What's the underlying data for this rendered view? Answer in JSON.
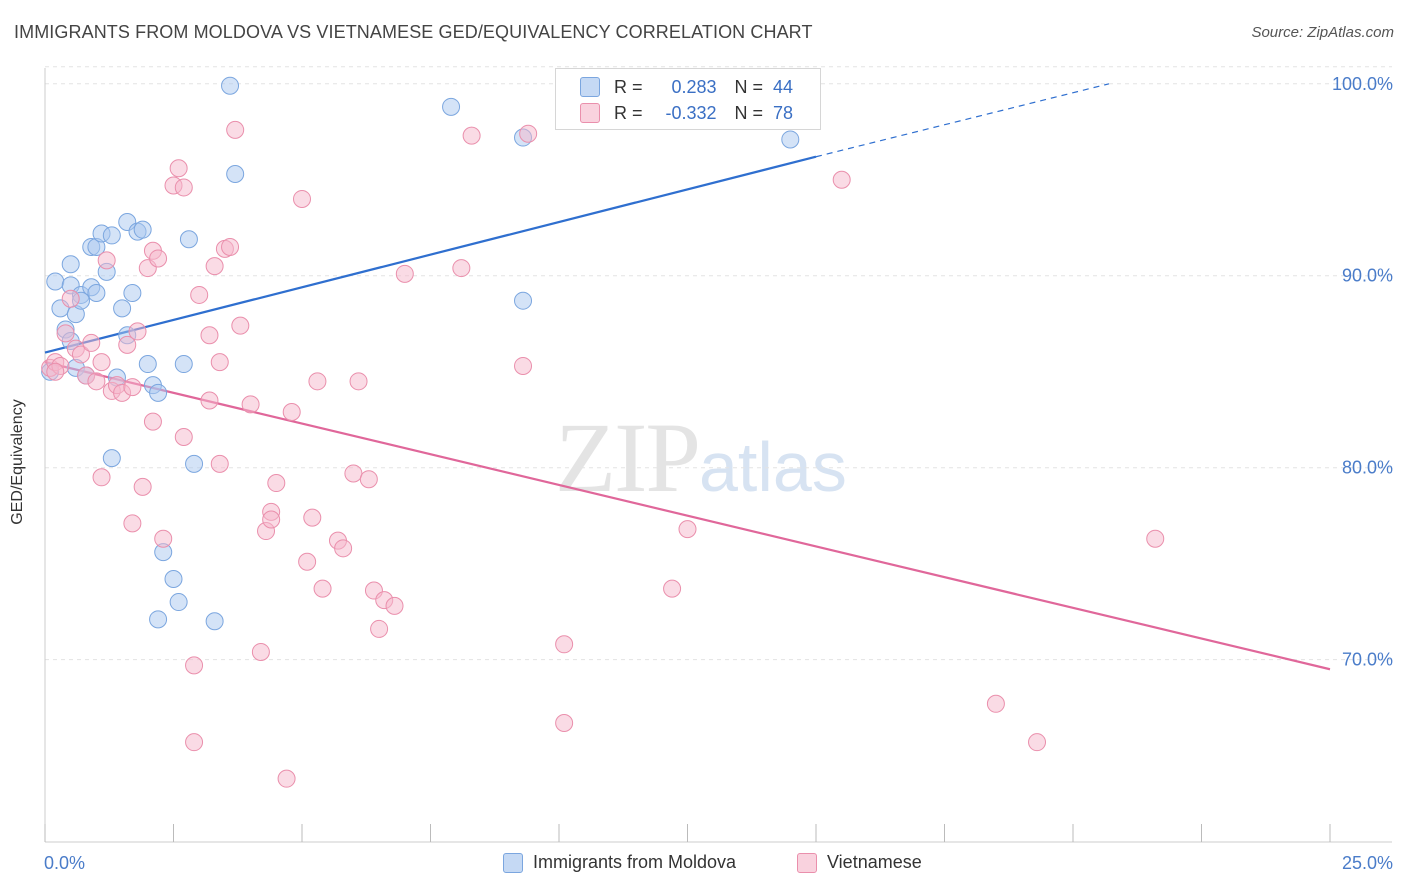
{
  "header": {
    "title": "IMMIGRANTS FROM MOLDOVA VS VIETNAMESE GED/EQUIVALENCY CORRELATION CHART",
    "source": "Source: ZipAtlas.com"
  },
  "watermark": {
    "zip": "ZIP",
    "atlas": "atlas"
  },
  "stats_box": {
    "rows": [
      {
        "r_label": "R =",
        "r_value": "0.283",
        "n_label": "N =",
        "n_value": "44",
        "color": "#a9c8f0"
      },
      {
        "r_label": "R =",
        "r_value": "-0.332",
        "n_label": "N =",
        "n_value": "78",
        "color": "#f5b8cb"
      }
    ]
  },
  "chart_data": {
    "type": "scatter",
    "title": "IMMIGRANTS FROM MOLDOVA VS VIETNAMESE GED/EQUIVALENCY CORRELATION CHART",
    "xlabel": "",
    "ylabel": "GED/Equivalency",
    "xlim": [
      0,
      25
    ],
    "ylim": [
      60.5,
      101.5
    ],
    "x_tick_labels": [
      "0.0%",
      "25.0%"
    ],
    "y_ticks": [
      70,
      80,
      90,
      100
    ],
    "y_tick_labels": [
      "70.0%",
      "80.0%",
      "90.0%",
      "100.0%"
    ],
    "grid": true,
    "legend_position": "bottom",
    "series": [
      {
        "name": "Immigrants from Moldova",
        "color": "#a9c8f0",
        "edge": "#7ba6df",
        "line_color": "#2f6fcf",
        "trend": {
          "x": [
            0,
            15.0
          ],
          "y": [
            86.0,
            96.2
          ],
          "dashed_to": [
            20.7,
            100.0
          ]
        },
        "points": [
          [
            0.2,
            89.7
          ],
          [
            0.3,
            88.3
          ],
          [
            0.4,
            87.2
          ],
          [
            0.5,
            89.5
          ],
          [
            0.5,
            90.6
          ],
          [
            0.5,
            86.6
          ],
          [
            0.6,
            88.0
          ],
          [
            0.6,
            85.2
          ],
          [
            0.7,
            89.0
          ],
          [
            0.7,
            88.7
          ],
          [
            0.8,
            84.8
          ],
          [
            0.9,
            89.4
          ],
          [
            0.9,
            91.5
          ],
          [
            1.0,
            91.5
          ],
          [
            1.0,
            89.1
          ],
          [
            1.1,
            92.2
          ],
          [
            1.2,
            90.2
          ],
          [
            1.3,
            92.1
          ],
          [
            1.4,
            84.7
          ],
          [
            1.5,
            88.3
          ],
          [
            1.6,
            92.8
          ],
          [
            1.6,
            86.9
          ],
          [
            1.7,
            89.1
          ],
          [
            1.8,
            92.3
          ],
          [
            1.9,
            92.4
          ],
          [
            2.0,
            85.4
          ],
          [
            2.1,
            84.3
          ],
          [
            2.2,
            83.9
          ],
          [
            1.3,
            80.5
          ],
          [
            2.3,
            75.6
          ],
          [
            2.5,
            74.2
          ],
          [
            2.6,
            73.0
          ],
          [
            2.2,
            72.1
          ],
          [
            2.7,
            85.4
          ],
          [
            2.8,
            91.9
          ],
          [
            2.9,
            80.2
          ],
          [
            3.3,
            72.0
          ],
          [
            3.6,
            99.9
          ],
          [
            3.7,
            95.3
          ],
          [
            7.9,
            98.8
          ],
          [
            9.3,
            97.2
          ],
          [
            14.5,
            97.1
          ],
          [
            9.3,
            88.7
          ],
          [
            0.1,
            85.0
          ]
        ]
      },
      {
        "name": "Vietnamese",
        "color": "#f5b8cb",
        "edge": "#ea8fac",
        "line_color": "#e0679a",
        "trend": {
          "x": [
            0,
            25.0
          ],
          "y": [
            85.5,
            69.5
          ]
        },
        "points": [
          [
            0.1,
            85.2
          ],
          [
            0.2,
            85.5
          ],
          [
            0.3,
            85.3
          ],
          [
            0.4,
            87.0
          ],
          [
            0.5,
            88.8
          ],
          [
            0.6,
            86.2
          ],
          [
            0.7,
            85.9
          ],
          [
            0.8,
            84.8
          ],
          [
            0.9,
            86.5
          ],
          [
            1.0,
            84.5
          ],
          [
            1.1,
            79.5
          ],
          [
            1.1,
            85.5
          ],
          [
            1.2,
            90.8
          ],
          [
            1.3,
            84.0
          ],
          [
            1.4,
            84.3
          ],
          [
            1.5,
            83.9
          ],
          [
            1.6,
            86.4
          ],
          [
            1.7,
            84.2
          ],
          [
            1.7,
            77.1
          ],
          [
            1.8,
            87.1
          ],
          [
            1.9,
            79.0
          ],
          [
            2.0,
            90.4
          ],
          [
            2.1,
            91.3
          ],
          [
            2.1,
            82.4
          ],
          [
            2.2,
            90.9
          ],
          [
            2.3,
            76.3
          ],
          [
            2.5,
            94.7
          ],
          [
            2.6,
            95.6
          ],
          [
            2.7,
            94.6
          ],
          [
            2.7,
            81.6
          ],
          [
            2.9,
            69.7
          ],
          [
            2.9,
            65.7
          ],
          [
            3.0,
            89.0
          ],
          [
            3.2,
            83.5
          ],
          [
            3.2,
            86.9
          ],
          [
            3.3,
            90.5
          ],
          [
            3.4,
            85.5
          ],
          [
            3.4,
            80.2
          ],
          [
            3.5,
            91.4
          ],
          [
            3.6,
            91.5
          ],
          [
            3.7,
            97.6
          ],
          [
            3.8,
            87.4
          ],
          [
            4.0,
            83.3
          ],
          [
            4.2,
            70.4
          ],
          [
            4.3,
            76.7
          ],
          [
            4.4,
            77.7
          ],
          [
            4.4,
            77.3
          ],
          [
            4.5,
            79.2
          ],
          [
            4.7,
            63.8
          ],
          [
            4.8,
            82.9
          ],
          [
            5.0,
            94.0
          ],
          [
            5.1,
            75.1
          ],
          [
            5.2,
            77.4
          ],
          [
            5.3,
            84.5
          ],
          [
            5.4,
            73.7
          ],
          [
            5.7,
            76.2
          ],
          [
            5.8,
            75.8
          ],
          [
            6.0,
            79.7
          ],
          [
            6.1,
            84.5
          ],
          [
            6.3,
            79.4
          ],
          [
            6.4,
            73.6
          ],
          [
            6.5,
            71.6
          ],
          [
            6.6,
            73.1
          ],
          [
            6.8,
            72.8
          ],
          [
            7.0,
            90.1
          ],
          [
            8.1,
            90.4
          ],
          [
            8.3,
            97.3
          ],
          [
            9.3,
            85.3
          ],
          [
            9.4,
            97.4
          ],
          [
            10.1,
            66.7
          ],
          [
            10.1,
            70.8
          ],
          [
            12.2,
            73.7
          ],
          [
            12.5,
            76.8
          ],
          [
            15.5,
            95.0
          ],
          [
            18.5,
            67.7
          ],
          [
            19.3,
            65.7
          ],
          [
            21.6,
            76.3
          ],
          [
            0.2,
            85.0
          ]
        ]
      }
    ]
  }
}
